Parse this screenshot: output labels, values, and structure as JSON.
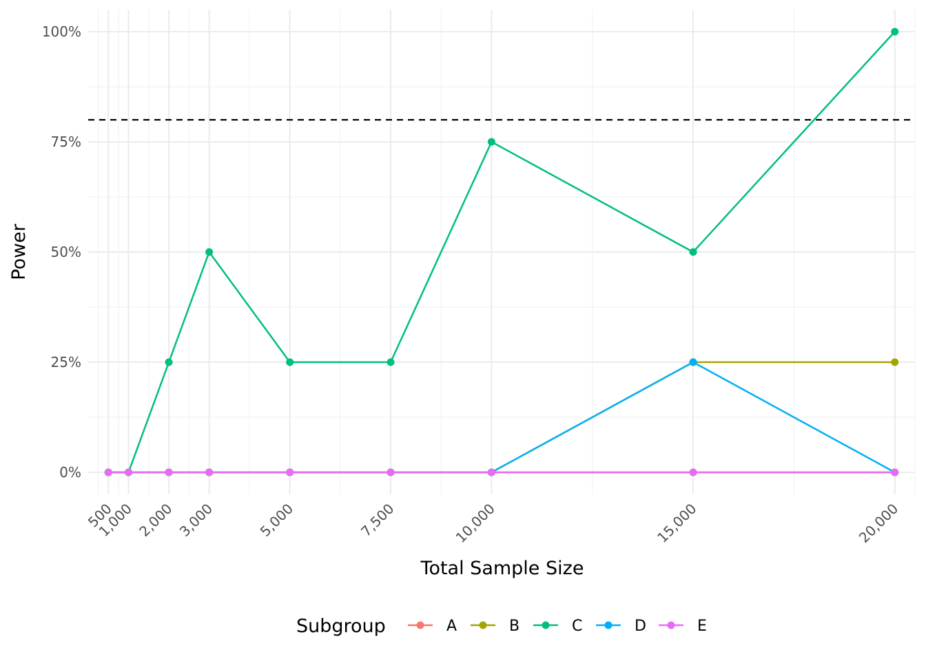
{
  "chart_data": {
    "type": "line",
    "xlabel": "Total Sample Size",
    "ylabel": "Power",
    "x": [
      500,
      1000,
      2000,
      3000,
      5000,
      7500,
      10000,
      15000,
      20000
    ],
    "x_tick_labels": [
      "500",
      "1,000",
      "2,000",
      "3,000",
      "5,000",
      "7,500",
      "10,000",
      "15,000",
      "20,000"
    ],
    "y_ticks": [
      0,
      0.25,
      0.5,
      0.75,
      1.0
    ],
    "y_tick_labels": [
      "0%",
      "25%",
      "50%",
      "75%",
      "100%"
    ],
    "xlim": [
      0,
      20500
    ],
    "ylim": [
      -0.05,
      1.05
    ],
    "grid": true,
    "reference_line": {
      "y": 0.8,
      "style": "dashed",
      "color": "#000000"
    },
    "series": [
      {
        "name": "A",
        "color": "#F8766D",
        "values": [
          0,
          0,
          0,
          0,
          0,
          0,
          0,
          0,
          0
        ]
      },
      {
        "name": "B",
        "color": "#A3A500",
        "values": [
          0,
          0,
          0,
          0,
          0,
          0,
          0,
          0.25,
          0.25
        ]
      },
      {
        "name": "C",
        "color": "#00BF7D",
        "values": [
          0,
          0,
          0.25,
          0.5,
          0.25,
          0.25,
          0.75,
          0.5,
          1.0
        ]
      },
      {
        "name": "D",
        "color": "#00B0F6",
        "values": [
          0,
          0,
          0,
          0,
          0,
          0,
          0,
          0.25,
          0
        ]
      },
      {
        "name": "E",
        "color": "#E76BF3",
        "values": [
          0,
          0,
          0,
          0,
          0,
          0,
          0,
          0,
          0
        ]
      }
    ],
    "legend": {
      "title": "Subgroup",
      "position": "bottom"
    }
  }
}
